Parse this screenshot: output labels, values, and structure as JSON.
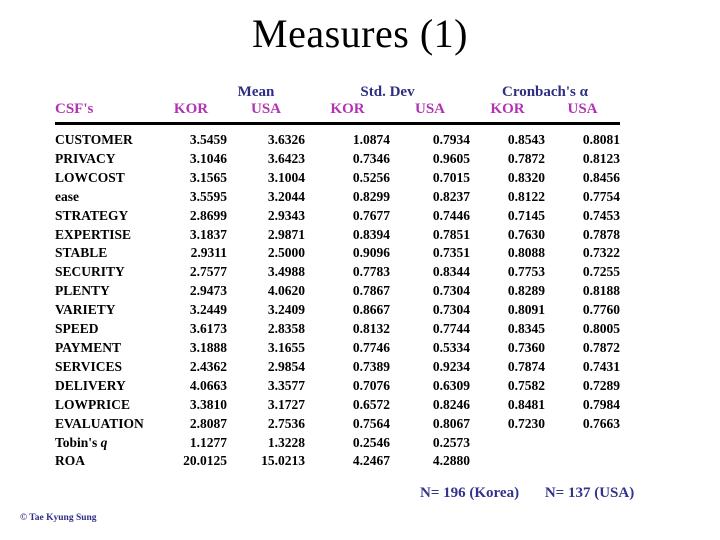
{
  "slide": {
    "title": "Measures (1)",
    "copyright": "© Tae Kyung Sung"
  },
  "colors": {
    "group_header": "#2e2e85",
    "sub_header": "#b233b2",
    "body_text": "#000000",
    "footer_text": "#33338c",
    "background": "#ffffff"
  },
  "table": {
    "csf_header": "CSF's",
    "group_headers": [
      "Mean",
      "Std. Dev",
      "Cronbach's α"
    ],
    "sub_headers": [
      "KOR",
      "USA",
      "KOR",
      "USA",
      "KOR",
      "USA"
    ],
    "rows": [
      {
        "name": "CUSTOMER",
        "values": [
          "3.5459",
          "3.6326",
          "1.0874",
          "0.7934",
          "0.8543",
          "0.8081"
        ]
      },
      {
        "name": "PRIVACY",
        "values": [
          "3.1046",
          "3.6423",
          "0.7346",
          "0.9605",
          "0.7872",
          "0.8123"
        ]
      },
      {
        "name": "LOWCOST",
        "values": [
          "3.1565",
          "3.1004",
          "0.5256",
          "0.7015",
          "0.8320",
          "0.8456"
        ]
      },
      {
        "name": "ease",
        "values": [
          "3.5595",
          "3.2044",
          "0.8299",
          "0.8237",
          "0.8122",
          "0.7754"
        ]
      },
      {
        "name": "STRATEGY",
        "values": [
          "2.8699",
          "2.9343",
          "0.7677",
          "0.7446",
          "0.7145",
          "0.7453"
        ]
      },
      {
        "name": "EXPERTISE",
        "values": [
          "3.1837",
          "2.9871",
          "0.8394",
          "0.7851",
          "0.7630",
          "0.7878"
        ]
      },
      {
        "name": "STABLE",
        "values": [
          "2.9311",
          "2.5000",
          "0.9096",
          "0.7351",
          "0.8088",
          "0.7322"
        ]
      },
      {
        "name": "SECURITY",
        "values": [
          "2.7577",
          "3.4988",
          "0.7783",
          "0.8344",
          "0.7753",
          "0.7255"
        ]
      },
      {
        "name": "PLENTY",
        "values": [
          "2.9473",
          "4.0620",
          "0.7867",
          "0.7304",
          "0.8289",
          "0.8188"
        ]
      },
      {
        "name": "VARIETY",
        "values": [
          "3.2449",
          "3.2409",
          "0.8667",
          "0.7304",
          "0.8091",
          "0.7760"
        ]
      },
      {
        "name": "SPEED",
        "values": [
          "3.6173",
          "2.8358",
          "0.8132",
          "0.7744",
          "0.8345",
          "0.8005"
        ]
      },
      {
        "name": "PAYMENT",
        "values": [
          "3.1888",
          "3.1655",
          "0.7746",
          "0.5334",
          "0.7360",
          "0.7872"
        ]
      },
      {
        "name": "SERVICES",
        "values": [
          "2.4362",
          "2.9854",
          "0.7389",
          "0.9234",
          "0.7874",
          "0.7431"
        ]
      },
      {
        "name": "DELIVERY",
        "values": [
          "4.0663",
          "3.3577",
          "0.7076",
          "0.6309",
          "0.7582",
          "0.7289"
        ]
      },
      {
        "name": "LOWPRICE",
        "values": [
          "3.3810",
          "3.1727",
          "0.6572",
          "0.8246",
          "0.8481",
          "0.7984"
        ]
      },
      {
        "name": "EVALUATION",
        "values": [
          "2.8087",
          "2.7536",
          "0.7564",
          "0.8067",
          "0.7230",
          "0.7663"
        ]
      },
      {
        "name": "Tobin's",
        "suffix_italic": "q",
        "values": [
          "1.1277",
          "1.3228",
          "0.2546",
          "0.2573",
          "",
          ""
        ]
      },
      {
        "name": "ROA",
        "values": [
          "20.0125",
          "15.0213",
          "4.2467",
          "4.2880",
          "",
          ""
        ]
      }
    ]
  },
  "footer": {
    "n_korea": "N= 196 (Korea)",
    "n_usa": "N= 137 (USA)"
  }
}
